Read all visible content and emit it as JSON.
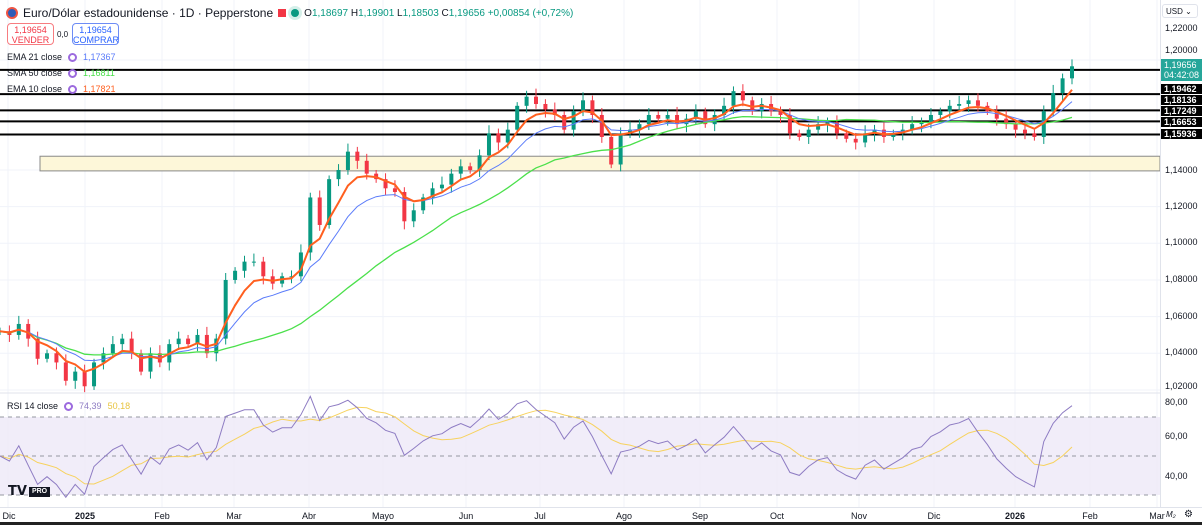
{
  "header": {
    "title": "Euro/Dólar estadounidense · 1D · Pepperstone",
    "open_label": "O",
    "open": "1,18697",
    "high_label": "H",
    "high": "1,19901",
    "low_label": "L",
    "low": "1,18503",
    "close_label": "C",
    "close": "1,19656",
    "change": "+0,00854 (+0,72%)"
  },
  "trade": {
    "sell_price": "1,19654",
    "sell_label": "VENDER",
    "spread": "0,0",
    "buy_price": "1,19654",
    "buy_label": "COMPRAR"
  },
  "indicators": [
    {
      "label": "EMA 21 close",
      "value": "1,17367",
      "color": "#5b7cfa"
    },
    {
      "label": "SMA 50 close",
      "value": "1,16811",
      "color": "#4be04b"
    },
    {
      "label": "EMA 10 close",
      "value": "1,17821",
      "color": "#ff5f1f"
    }
  ],
  "rsi": {
    "label": "RSI 14 close",
    "value": "74,39",
    "ma_value": "50,18",
    "color": "#8e7cc3",
    "ma_color": "#f7d25e"
  },
  "currency": "USD",
  "price_axis": {
    "ticks": [
      "1,22000",
      "1,20000",
      "1,14000",
      "1,12000",
      "1,10000",
      "1,08000",
      "1,06000",
      "1,04000",
      "1,02000"
    ],
    "current": "1,19656",
    "countdown": "04:42:08",
    "levels": [
      "1,19462",
      "1,18136",
      "1,17249",
      "1,16653",
      "1,15936"
    ]
  },
  "rsi_axis": {
    "ticks": [
      "80,00",
      "60,00",
      "40,00"
    ]
  },
  "time_axis": {
    "labels": [
      "Dic",
      "2025",
      "Feb",
      "Mar",
      "Abr",
      "Mayo",
      "Jun",
      "Jul",
      "Ago",
      "Sep",
      "Oct",
      "Nov",
      "Dic",
      "2026",
      "Feb",
      "Mar"
    ]
  },
  "footer": {
    "logo": "TV PRO",
    "log_toggle": "M₂",
    "settings_icon": "gear-icon"
  },
  "chart_data": {
    "type": "candlestick",
    "symbol": "EURUSD",
    "ylim": [
      1.01,
      1.225
    ],
    "levels": [
      1.19462,
      1.18136,
      1.17249,
      1.16653,
      1.15936
    ],
    "zone": [
      1.1395,
      1.1475
    ],
    "up_color": "#089981",
    "down_color": "#f23645",
    "closes": [
      1.052,
      1.05,
      1.056,
      1.048,
      1.037,
      1.04,
      1.035,
      1.025,
      1.03,
      1.022,
      1.035,
      1.04,
      1.045,
      1.048,
      1.04,
      1.03,
      1.04,
      1.035,
      1.045,
      1.048,
      1.045,
      1.05,
      1.04,
      1.048,
      1.08,
      1.085,
      1.09,
      1.09,
      1.082,
      1.078,
      1.082,
      1.082,
      1.095,
      1.125,
      1.11,
      1.135,
      1.14,
      1.15,
      1.145,
      1.138,
      1.135,
      1.13,
      1.128,
      1.112,
      1.118,
      1.125,
      1.13,
      1.132,
      1.138,
      1.142,
      1.14,
      1.148,
      1.16,
      1.155,
      1.162,
      1.175,
      1.18,
      1.176,
      1.173,
      1.17,
      1.162,
      1.172,
      1.178,
      1.17,
      1.158,
      1.143,
      1.16,
      1.162,
      1.165,
      1.17,
      1.168,
      1.17,
      1.165,
      1.168,
      1.172,
      1.165,
      1.17,
      1.175,
      1.183,
      1.178,
      1.172,
      1.176,
      1.172,
      1.17,
      1.16,
      1.158,
      1.162,
      1.165,
      1.166,
      1.16,
      1.157,
      1.155,
      1.16,
      1.162,
      1.158,
      1.16,
      1.162,
      1.165,
      1.166,
      1.17,
      1.172,
      1.175,
      1.176,
      1.178,
      1.175,
      1.172,
      1.168,
      1.165,
      1.162,
      1.16,
      1.158,
      1.172,
      1.182,
      1.19,
      1.19656
    ]
  }
}
